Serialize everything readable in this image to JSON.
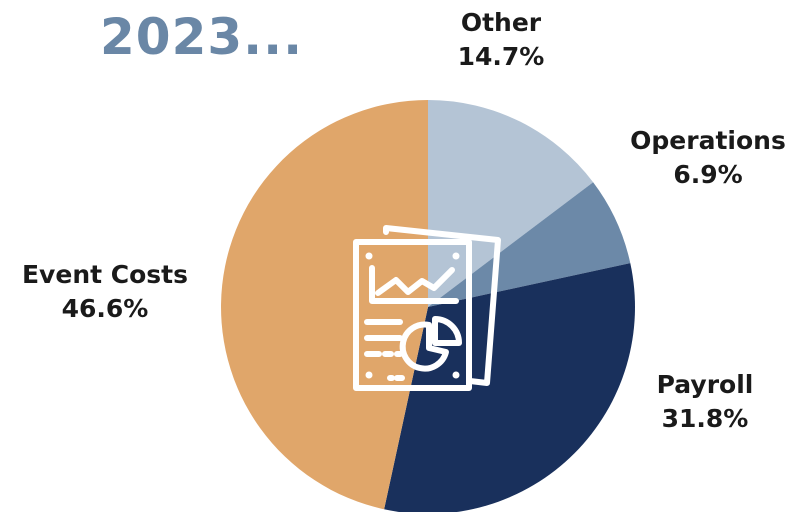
{
  "chart_data": {
    "type": "pie",
    "title": "2023...",
    "slices": [
      {
        "label": "Other",
        "value": 14.7,
        "display": "14.7%",
        "color": "#b4c4d5"
      },
      {
        "label": "Operations",
        "value": 6.9,
        "display": "6.9%",
        "color": "#6c89a8"
      },
      {
        "label": "Payroll",
        "value": 31.8,
        "display": "31.8%",
        "color": "#19305c"
      },
      {
        "label": "Event Costs",
        "value": 46.6,
        "display": "46.6%",
        "color": "#e0a66a"
      }
    ],
    "start_angle": "12 o'clock",
    "direction": "clockwise",
    "legend": "none",
    "center_icon": "report-chart-icon"
  }
}
